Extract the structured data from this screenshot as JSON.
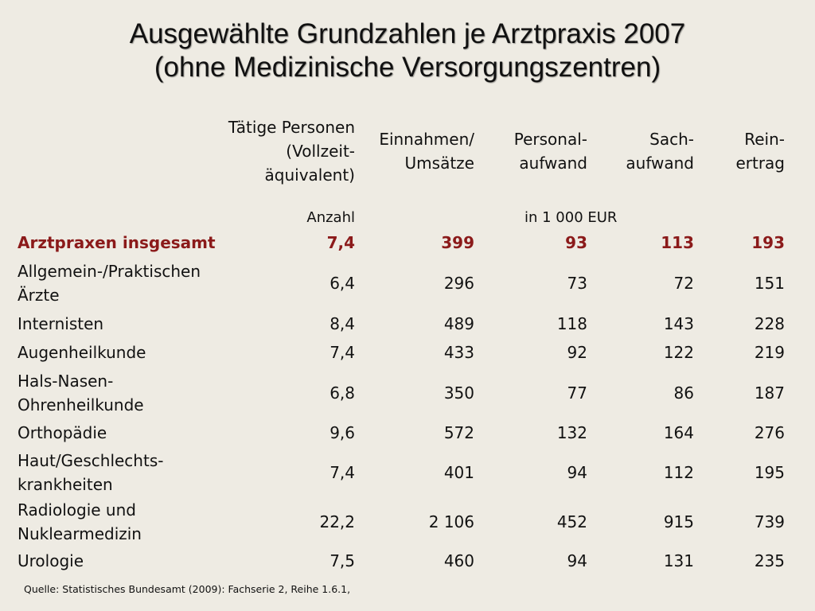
{
  "title": {
    "line1": "Ausgewählte Grundzahlen je Arztpraxis 2007",
    "line2": "(ohne Medizinische Versorgungszentren)"
  },
  "table": {
    "headers": {
      "taetige_personen": [
        "Tätige Personen",
        "(Vollzeit-",
        "äquivalent)"
      ],
      "einnahmen": [
        "Einnahmen/",
        "Umsätze"
      ],
      "personal": [
        "Personal-",
        "aufwand"
      ],
      "sach": [
        "Sach-",
        "aufwand"
      ],
      "rein": [
        "Rein-",
        "ertrag"
      ]
    },
    "units": {
      "anzahl": "Anzahl",
      "eur": "in 1 000 EUR"
    },
    "rows": [
      {
        "label": [
          "Arztpraxen insgesamt"
        ],
        "personen": "7,4",
        "einnahmen": "399",
        "personal": "93",
        "sach": "113",
        "rein": "193"
      },
      {
        "label": [
          "Allgemein-/Praktischen",
          "Ärzte"
        ],
        "personen": "6,4",
        "einnahmen": "296",
        "personal": "73",
        "sach": "72",
        "rein": "151"
      },
      {
        "label": [
          "Internisten"
        ],
        "personen": "8,4",
        "einnahmen": "489",
        "personal": "118",
        "sach": "143",
        "rein": "228"
      },
      {
        "label": [
          "Augenheilkunde"
        ],
        "personen": "7,4",
        "einnahmen": "433",
        "personal": "92",
        "sach": "122",
        "rein": "219"
      },
      {
        "label": [
          "Hals-Nasen-",
          "Ohrenheilkunde"
        ],
        "personen": "6,8",
        "einnahmen": "350",
        "personal": "77",
        "sach": "86",
        "rein": "187"
      },
      {
        "label": [
          "Orthopädie"
        ],
        "personen": "9,6",
        "einnahmen": "572",
        "personal": "132",
        "sach": "164",
        "rein": "276"
      },
      {
        "label": [
          "Haut/Geschlechts-",
          "krankheiten"
        ],
        "personen": "7,4",
        "einnahmen": "401",
        "personal": "94",
        "sach": "112",
        "rein": "195"
      },
      {
        "label": [
          "Radiologie und",
          "Nuklearmedizin"
        ],
        "personen": "22,2",
        "einnahmen": "2 106",
        "personal": "452",
        "sach": "915",
        "rein": "739"
      },
      {
        "label": [
          "Urologie"
        ],
        "personen": "7,5",
        "einnahmen": "460",
        "personal": "94",
        "sach": "131",
        "rein": "235"
      }
    ]
  },
  "source": "Quelle: Statistisches Bundesamt (2009): Fachserie 2, Reihe 1.6.1,",
  "colors": {
    "background": "#eeebe3",
    "text": "#111111",
    "total_row": "#8b1a1a"
  }
}
